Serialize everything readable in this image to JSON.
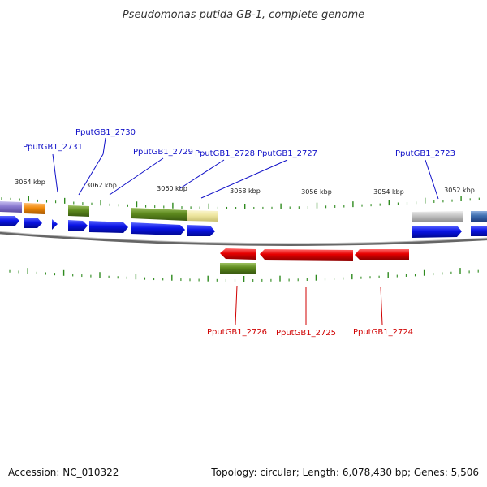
{
  "title": "Pseudomonas putida GB-1, complete genome",
  "footer": {
    "accession": "Accession: NC_010322",
    "summary": "Topology: circular; Length: 6,078,430 bp; Genes: 5,506"
  },
  "scale_labels": [
    "3064 kbp",
    "3062 kbp",
    "3060 kbp",
    "3058 kbp",
    "3056 kbp",
    "3054 kbp",
    "3052 kbp"
  ],
  "forward_genes": [
    "PputGB1_2731",
    "PputGB1_2730",
    "PputGB1_2729",
    "PputGB1_2728",
    "PputGB1_2727",
    "PputGB1_2723"
  ],
  "reverse_genes": [
    "PputGB1_2726",
    "PputGB1_2725",
    "PputGB1_2724"
  ],
  "colors": {
    "forward_label": "#1010c8",
    "reverse_label": "#d00000",
    "cds_forward": "#0a14e6",
    "cds_reverse": "#e60000",
    "olive": "#5e8a1e",
    "orange": "#f08a0a",
    "khaki": "#eee6a0",
    "gray": "#c0c0c0",
    "purple": "#8a7ad0",
    "steelblue": "#3f6fb0",
    "tick": "#2e8a1e",
    "backbone": "#777777"
  }
}
